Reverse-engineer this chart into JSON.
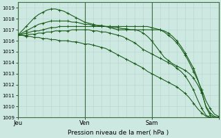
{
  "title": "Pression niveau de la mer( hPa )",
  "bg_color": "#cce8e0",
  "grid_color_major": "#b8d8d0",
  "grid_color_minor": "#c8e4dc",
  "line_color": "#1a5c1a",
  "ylim": [
    1009.0,
    1019.5
  ],
  "yticks": [
    1009,
    1010,
    1011,
    1012,
    1013,
    1014,
    1015,
    1016,
    1017,
    1018,
    1019
  ],
  "xlim": [
    0,
    48
  ],
  "vline_positions": [
    0,
    16,
    32,
    48
  ],
  "xtick_positions": [
    0,
    16,
    32,
    48
  ],
  "xtick_labels": [
    "Jeu",
    "Ven",
    "Sam",
    ""
  ],
  "num_points": 49,
  "series": [
    [
      1016.5,
      1016.6,
      1016.7,
      1016.8,
      1016.9,
      1016.9,
      1017.0,
      1017.1,
      1017.2,
      1017.2,
      1017.3,
      1017.3,
      1017.3,
      1017.3,
      1017.3,
      1017.3,
      1017.3,
      1017.3,
      1017.3,
      1017.3,
      1017.3,
      1017.3,
      1017.3,
      1017.3,
      1017.3,
      1017.3,
      1017.3,
      1017.3,
      1017.3,
      1017.3,
      1017.3,
      1017.3,
      1017.2,
      1017.1,
      1017.0,
      1016.8,
      1016.5,
      1016.2,
      1015.8,
      1015.3,
      1014.7,
      1014.0,
      1013.2,
      1012.4,
      1011.5,
      1010.5,
      1009.8,
      1009.3,
      1009.1
    ],
    [
      1016.5,
      1016.7,
      1016.9,
      1017.1,
      1017.3,
      1017.5,
      1017.6,
      1017.7,
      1017.8,
      1017.8,
      1017.8,
      1017.8,
      1017.8,
      1017.7,
      1017.7,
      1017.6,
      1017.5,
      1017.5,
      1017.4,
      1017.4,
      1017.4,
      1017.3,
      1017.3,
      1017.2,
      1017.2,
      1017.1,
      1017.1,
      1017.0,
      1017.0,
      1016.9,
      1016.7,
      1016.4,
      1016.0,
      1015.5,
      1015.0,
      1014.5,
      1014.2,
      1013.9,
      1013.7,
      1013.5,
      1013.3,
      1013.0,
      1012.6,
      1012.0,
      1011.2,
      1010.0,
      1009.4,
      1009.1,
      1009.0
    ],
    [
      1016.5,
      1016.5,
      1016.5,
      1016.6,
      1016.6,
      1016.7,
      1016.7,
      1016.8,
      1016.8,
      1016.9,
      1016.9,
      1016.9,
      1016.9,
      1017.0,
      1017.0,
      1017.0,
      1017.0,
      1017.0,
      1016.9,
      1016.9,
      1016.8,
      1016.8,
      1016.7,
      1016.6,
      1016.5,
      1016.4,
      1016.2,
      1016.0,
      1015.8,
      1015.5,
      1015.2,
      1015.0,
      1014.8,
      1014.6,
      1014.4,
      1014.2,
      1014.0,
      1013.8,
      1013.5,
      1013.2,
      1012.8,
      1012.2,
      1011.5,
      1010.6,
      1009.8,
      1009.2,
      1009.0,
      1009.0,
      1009.0
    ],
    [
      1016.5,
      1016.5,
      1016.4,
      1016.4,
      1016.3,
      1016.3,
      1016.2,
      1016.2,
      1016.1,
      1016.1,
      1016.0,
      1016.0,
      1016.0,
      1015.9,
      1015.9,
      1015.8,
      1015.7,
      1015.7,
      1015.6,
      1015.5,
      1015.4,
      1015.3,
      1015.1,
      1014.9,
      1014.7,
      1014.5,
      1014.3,
      1014.1,
      1013.9,
      1013.7,
      1013.5,
      1013.2,
      1013.0,
      1012.8,
      1012.6,
      1012.4,
      1012.2,
      1012.0,
      1011.8,
      1011.5,
      1011.2,
      1010.8,
      1010.3,
      1009.8,
      1009.4,
      1009.1,
      1009.0,
      1009.0,
      1009.0
    ],
    [
      1016.5,
      1016.9,
      1017.3,
      1017.7,
      1018.1,
      1018.4,
      1018.6,
      1018.8,
      1018.9,
      1018.9,
      1018.8,
      1018.7,
      1018.5,
      1018.3,
      1018.1,
      1017.9,
      1017.7,
      1017.6,
      1017.5,
      1017.4,
      1017.3,
      1017.3,
      1017.2,
      1017.1,
      1017.0,
      1017.0,
      1017.0,
      1017.0,
      1017.0,
      1017.0,
      1017.0,
      1017.0,
      1017.0,
      1017.0,
      1017.0,
      1016.9,
      1016.7,
      1016.4,
      1016.0,
      1015.5,
      1014.9,
      1014.2,
      1013.5,
      1012.5,
      1011.3,
      1009.9,
      1009.2,
      1009.0,
      1009.0
    ]
  ],
  "marker": "+"
}
